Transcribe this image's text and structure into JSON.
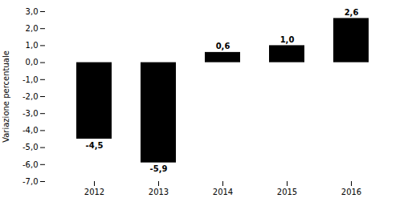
{
  "chart_data": {
    "type": "bar",
    "categories": [
      "2012",
      "2013",
      "2014",
      "2015",
      "2016"
    ],
    "values": [
      -4.5,
      -5.9,
      0.6,
      1.0,
      2.6
    ],
    "value_labels": [
      "-4,5",
      "-5,9",
      "0,6",
      "1,0",
      "2,6"
    ],
    "data_labels": true,
    "ylabel": "Variazione percentuale",
    "ylim": [
      -7.0,
      3.0
    ],
    "yticks": [
      {
        "value": -7.0,
        "label": "-7,0"
      },
      {
        "value": -6.0,
        "label": "-6,0"
      },
      {
        "value": -5.0,
        "label": "-5,0"
      },
      {
        "value": -4.0,
        "label": "-4,0"
      },
      {
        "value": -3.0,
        "label": "-3,0"
      },
      {
        "value": -2.0,
        "label": "-2,0"
      },
      {
        "value": -1.0,
        "label": "-1,0"
      },
      {
        "value": 0.0,
        "label": "0,0"
      },
      {
        "value": 1.0,
        "label": "1,0"
      },
      {
        "value": 2.0,
        "label": "2,0"
      },
      {
        "value": 3.0,
        "label": "3,0"
      }
    ]
  }
}
